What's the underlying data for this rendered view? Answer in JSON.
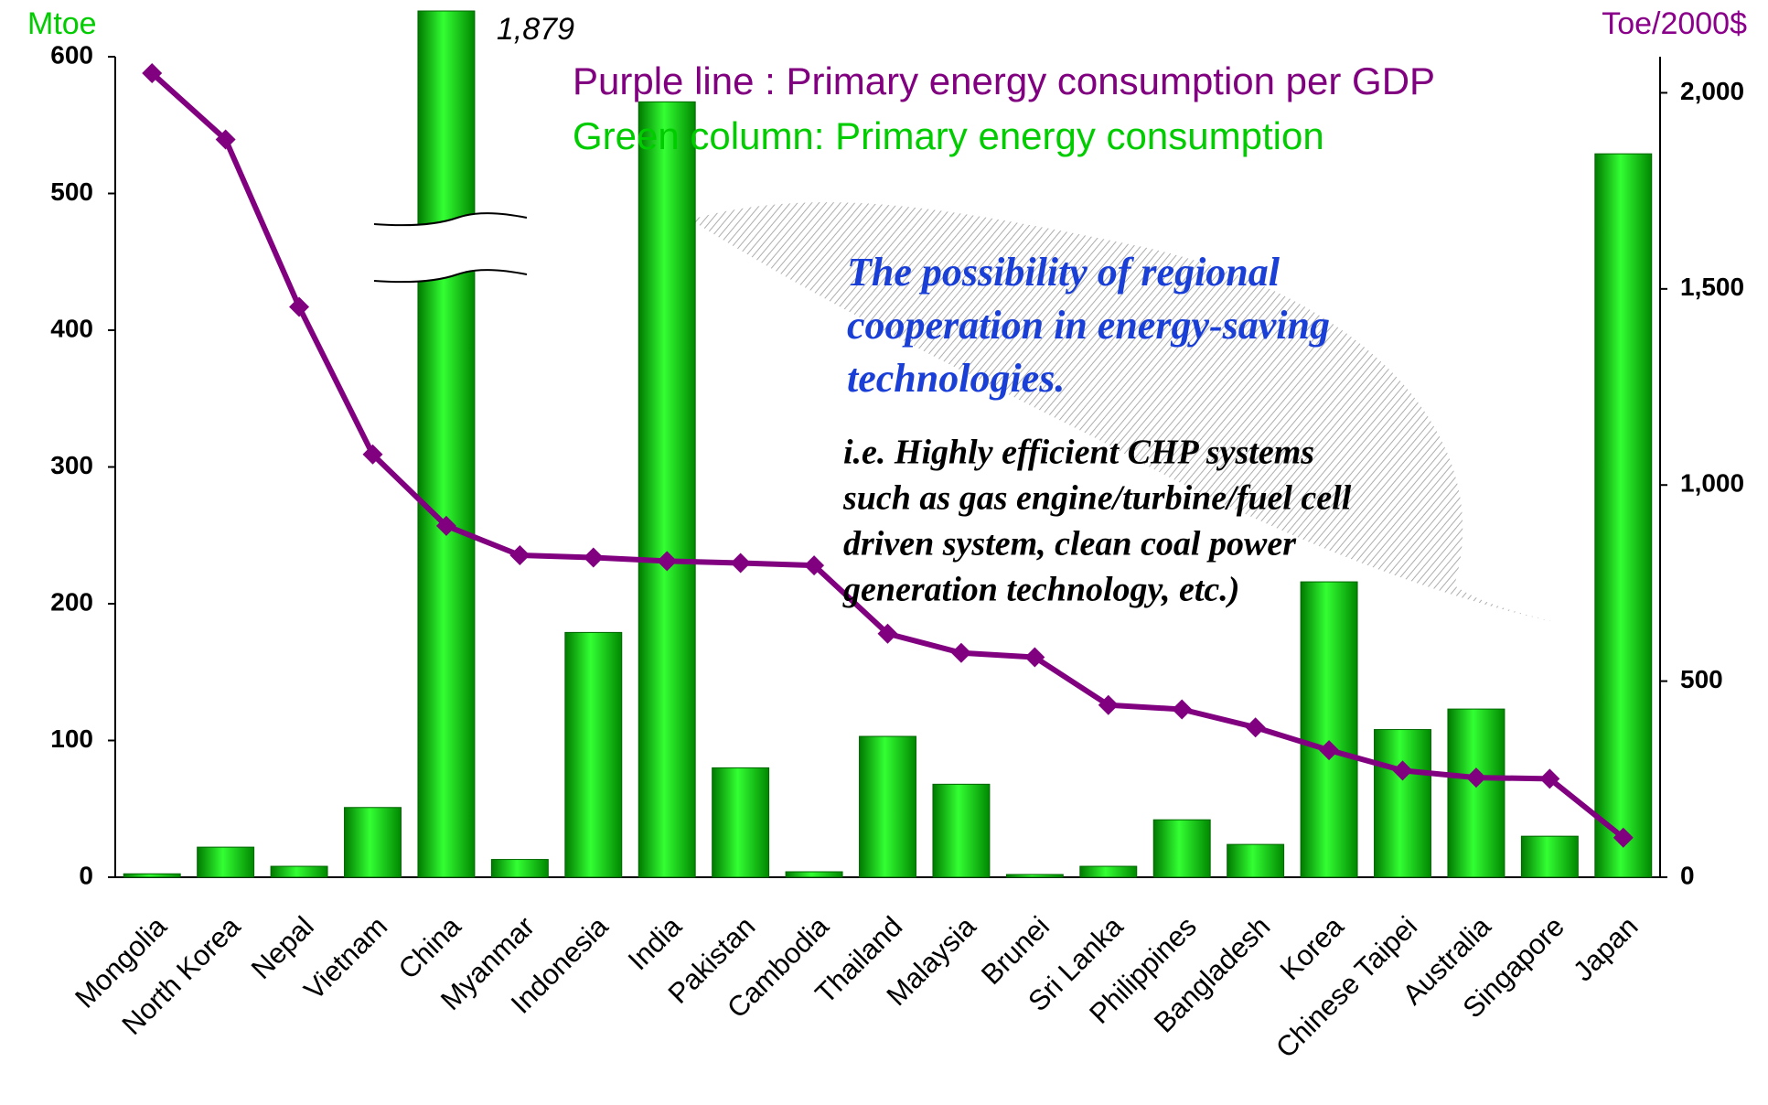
{
  "chart_data": {
    "type": "bar_line",
    "y_axis_label": "Mtoe",
    "y2_axis_label": "Toe/2000$",
    "categories": [
      "Mongolia",
      "North Korea",
      "Nepal",
      "Vietnam",
      "China",
      "Myanmar",
      "Indonesia",
      "India",
      "Pakistan",
      "Cambodia",
      "Thailand",
      "Malaysia",
      "Brunei",
      "Sri Lanka",
      "Philippines",
      "Bangladesh",
      "Korea",
      "Chinese Taipei",
      "Australia",
      "Singapore",
      "Japan"
    ],
    "series": [
      {
        "name": "Green column: Primary energy consumption",
        "type": "bar",
        "color": "#00cc00",
        "values": [
          2.5,
          22,
          8,
          51,
          1879,
          13,
          179,
          567,
          80,
          4,
          103,
          68,
          2,
          8,
          42,
          24,
          216,
          108,
          123,
          30,
          529
        ],
        "value_labels": [
          null,
          null,
          null,
          null,
          "1,879",
          null,
          null,
          null,
          null,
          null,
          null,
          null,
          null,
          null,
          null,
          null,
          null,
          null,
          null,
          null,
          null
        ]
      },
      {
        "name": "Purple line : Primary energy consumption per GDP",
        "type": "line",
        "axis": "y2",
        "color": "#800080",
        "values": [
          2050,
          1881,
          1454,
          1078,
          896,
          821,
          815,
          806,
          801,
          795,
          621,
          572,
          561,
          439,
          428,
          382,
          324,
          272,
          254,
          251,
          101
        ]
      }
    ],
    "ylim": [
      0,
      600
    ],
    "yticks": [
      0,
      100,
      200,
      300,
      400,
      500,
      600
    ],
    "y2lim": [
      0,
      2092
    ],
    "y2ticks": [
      0,
      500,
      {
        "value": 1000,
        "label": "1,000"
      },
      {
        "value": 1500,
        "label": "1,500"
      },
      {
        "value": 2000,
        "label": "2,000"
      }
    ],
    "annotation_main": [
      "The possibility of regional",
      "cooperation  in energy-saving",
      "technologies."
    ],
    "annotation_detail": [
      "i.e. Highly efficient CHP systems",
      "such as gas engine/turbine/fuel cell",
      "driven system, clean coal power",
      "generation technology, etc.)"
    ]
  }
}
